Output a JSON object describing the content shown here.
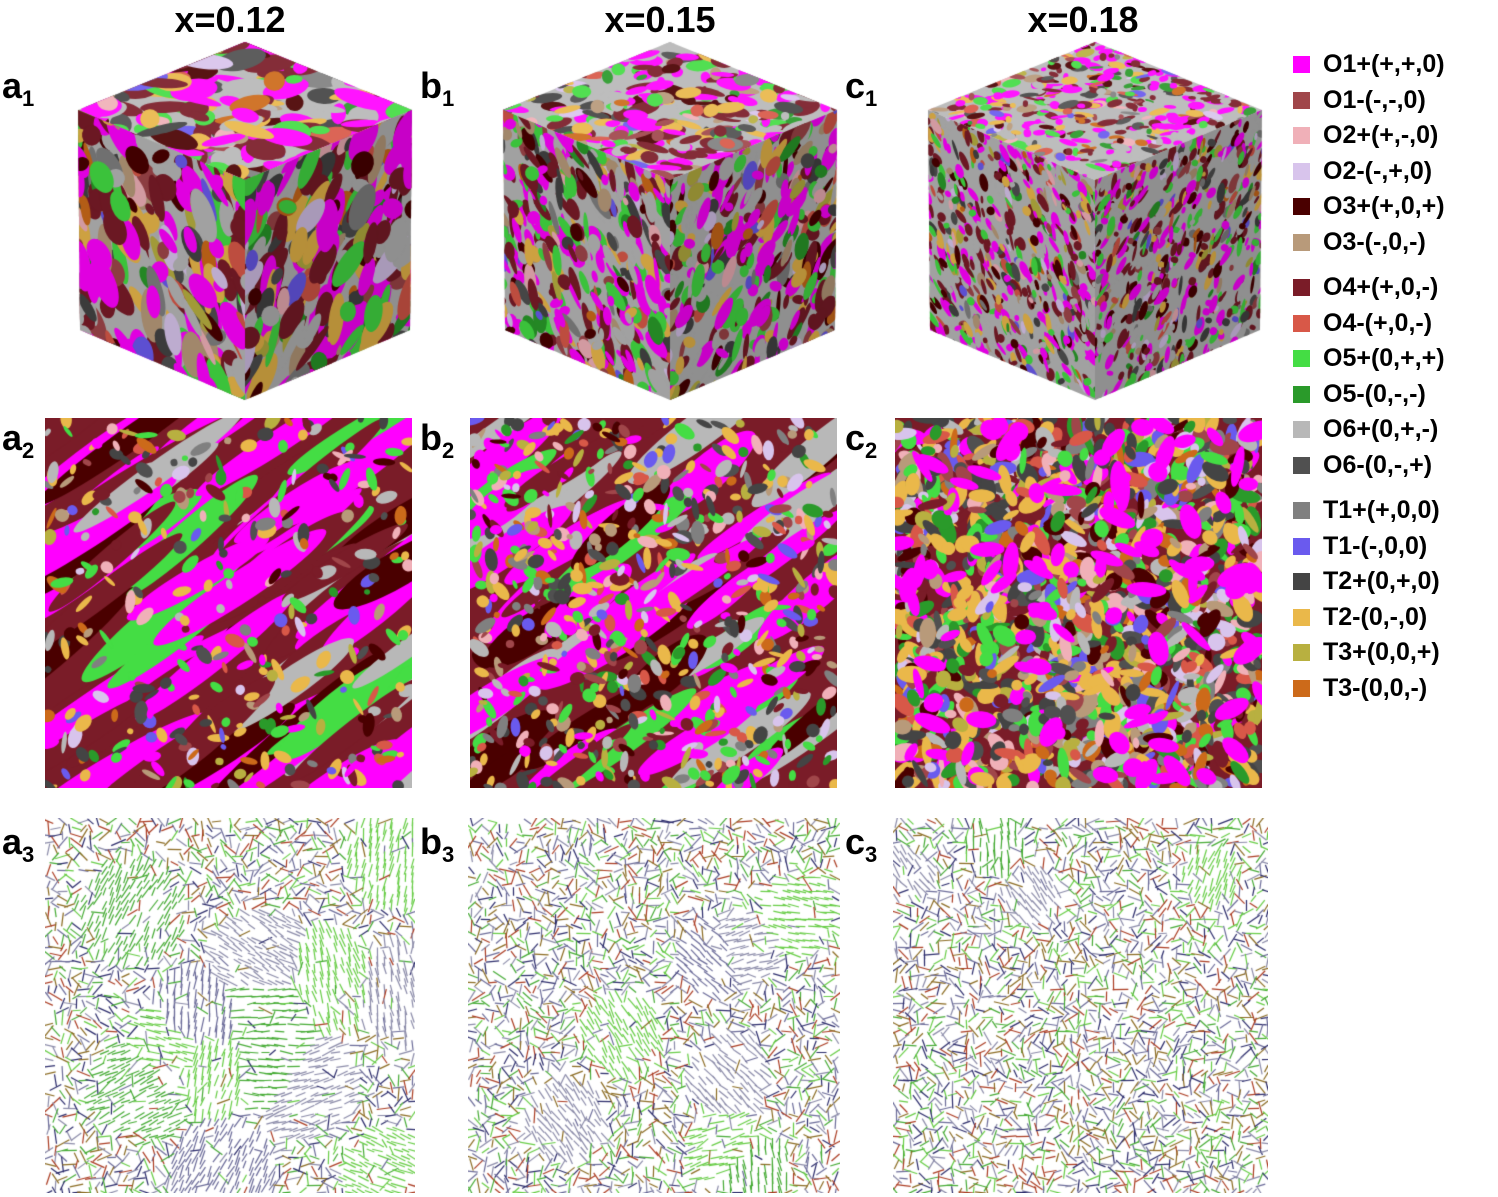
{
  "columns": [
    {
      "title": "x=0.12",
      "labels": [
        {
          "letter": "a",
          "sub": "1"
        },
        {
          "letter": "a",
          "sub": "2"
        },
        {
          "letter": "a",
          "sub": "3"
        }
      ]
    },
    {
      "title": "x=0.15",
      "labels": [
        {
          "letter": "b",
          "sub": "1"
        },
        {
          "letter": "b",
          "sub": "2"
        },
        {
          "letter": "b",
          "sub": "3"
        }
      ]
    },
    {
      "title": "x=0.18",
      "labels": [
        {
          "letter": "c",
          "sub": "1"
        },
        {
          "letter": "c",
          "sub": "2"
        },
        {
          "letter": "c",
          "sub": "3"
        }
      ]
    }
  ],
  "legend": [
    {
      "label": "O1+(+,+,0)",
      "color": "#ff00ff"
    },
    {
      "label": "O1-(-,-,0)",
      "color": "#a0464a"
    },
    {
      "label": "O2+(+,-,0)",
      "color": "#f0b0b8"
    },
    {
      "label": "O2-(-,+,0)",
      "color": "#d8c4ec"
    },
    {
      "label": "O3+(+,0,+)",
      "color": "#4a0000"
    },
    {
      "label": "O3-(-,0,-)",
      "color": "#b89a7a"
    },
    {
      "label": "O4+(+,0,-)",
      "color": "#7a1c28"
    },
    {
      "label": "O4-(+,0,-)",
      "color": "#d85848"
    },
    {
      "label": "O5+(0,+,+)",
      "color": "#44dd44"
    },
    {
      "label": "O5-(0,-,-)",
      "color": "#2a9a2a"
    },
    {
      "label": "O6+(0,+,-)",
      "color": "#b8b8b8"
    },
    {
      "label": "O6-(0,-,+)",
      "color": "#505050"
    },
    {
      "label": "T1+(+,0,0)",
      "color": "#808080"
    },
    {
      "label": "T1-(-,0,0)",
      "color": "#6a5aee"
    },
    {
      "label": "T2+(0,+,0)",
      "color": "#444444"
    },
    {
      "label": "T2-(0,-,0)",
      "color": "#eab84a"
    },
    {
      "label": "T3+(0,0,+)",
      "color": "#b8b040"
    },
    {
      "label": "T3-(0,0,-)",
      "color": "#cc6a1a"
    }
  ]
}
